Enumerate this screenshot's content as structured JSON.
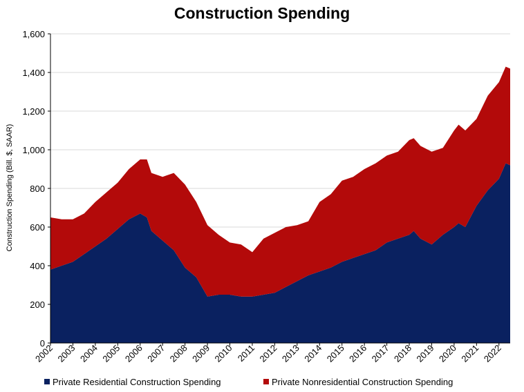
{
  "chart_data": {
    "type": "area",
    "title": "Construction Spending",
    "ylabel": "Construction Spending (Bill. $, SAAR)",
    "xlabel": "",
    "ylim": [
      0,
      1600
    ],
    "xlim": [
      2002,
      2022.5
    ],
    "yticks": [
      "0",
      "200",
      "400",
      "600",
      "800",
      "1,000",
      "1,200",
      "1,400",
      "1,600"
    ],
    "ytick_values": [
      0,
      200,
      400,
      600,
      800,
      1000,
      1200,
      1400,
      1600
    ],
    "xticks": [
      "2002",
      "2003",
      "2004",
      "2005",
      "2006",
      "2007",
      "2008",
      "2009",
      "2010",
      "2011",
      "2012",
      "2013",
      "2014",
      "2015",
      "2016",
      "2017",
      "2018",
      "2019",
      "2020",
      "2021",
      "2022"
    ],
    "grid": true,
    "legend_position": "bottom",
    "x": [
      2002.0,
      2002.5,
      2003.0,
      2003.5,
      2004.0,
      2004.5,
      2005.0,
      2005.5,
      2006.0,
      2006.3,
      2006.5,
      2007.0,
      2007.5,
      2008.0,
      2008.5,
      2009.0,
      2009.5,
      2010.0,
      2010.5,
      2011.0,
      2011.5,
      2012.0,
      2012.5,
      2013.0,
      2013.5,
      2014.0,
      2014.5,
      2015.0,
      2015.5,
      2016.0,
      2016.5,
      2017.0,
      2017.5,
      2018.0,
      2018.2,
      2018.5,
      2019.0,
      2019.5,
      2020.0,
      2020.2,
      2020.5,
      2021.0,
      2021.5,
      2022.0,
      2022.3,
      2022.5
    ],
    "series": [
      {
        "name": "Private Residential Construction Spending",
        "color": "#0a2160",
        "values": [
          380,
          400,
          420,
          460,
          500,
          540,
          590,
          640,
          670,
          650,
          580,
          530,
          480,
          390,
          340,
          240,
          250,
          250,
          240,
          240,
          250,
          260,
          290,
          320,
          350,
          370,
          390,
          420,
          440,
          460,
          480,
          520,
          540,
          560,
          580,
          540,
          510,
          560,
          600,
          620,
          600,
          710,
          790,
          850,
          930,
          920
        ]
      },
      {
        "name": "Private Nonresidential Construction Spending",
        "color": "#b30a0a",
        "values": [
          270,
          240,
          220,
          210,
          230,
          240,
          240,
          260,
          280,
          300,
          300,
          330,
          400,
          430,
          390,
          370,
          310,
          270,
          270,
          230,
          290,
          310,
          310,
          290,
          280,
          360,
          380,
          420,
          420,
          440,
          450,
          450,
          450,
          490,
          480,
          480,
          480,
          450,
          500,
          510,
          500,
          450,
          490,
          500,
          500,
          500
        ]
      }
    ],
    "legend": [
      {
        "label": "Private Residential Construction Spending",
        "color": "#0a2160"
      },
      {
        "label": "Private Nonresidential Construction Spending",
        "color": "#b30a0a"
      }
    ]
  }
}
